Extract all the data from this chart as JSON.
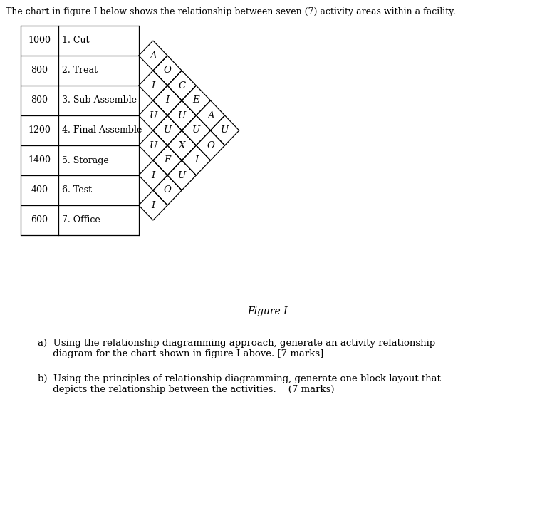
{
  "header_text": "The chart in figure I below shows the relationship between seven (7) activity areas within a facility.",
  "activities": [
    {
      "num": 1,
      "name": "1. Cut",
      "area": 1000
    },
    {
      "num": 2,
      "name": "2. Treat",
      "area": 800
    },
    {
      "num": 3,
      "name": "3. Sub-Assemble",
      "area": 800
    },
    {
      "num": 4,
      "name": "4. Final Assemble",
      "area": 1200
    },
    {
      "num": 5,
      "name": "5. Storage",
      "area": 1400
    },
    {
      "num": 6,
      "name": "6. Test",
      "area": 400
    },
    {
      "num": 7,
      "name": "7. Office",
      "area": 600
    }
  ],
  "relationships": {
    "1-2": "A",
    "1-3": "O",
    "2-3": "I",
    "1-4": "C",
    "2-4": "I",
    "3-4": "U",
    "1-5": "E",
    "2-5": "U",
    "3-5": "U",
    "4-5": "U",
    "1-6": "A",
    "2-6": "U",
    "3-6": "X",
    "4-6": "E",
    "5-6": "I",
    "1-7": "U",
    "2-7": "O",
    "3-7": "I",
    "4-7": "U",
    "5-7": "O",
    "6-7": "I"
  },
  "figure_label": "Figure I",
  "question_a": "a)  Using the relationship diagramming approach, generate an activity relationship\n     diagram for the chart shown in figure I above. [7 marks]",
  "question_b": "b)  Using the principles of relationship diagramming, generate one block layout that\n     depicts the relationship between the activities.    (7 marks)",
  "bg_color": "#ffffff",
  "line_color": "#000000",
  "text_color": "#000000",
  "font_size_header": 9.0,
  "font_size_activity": 9.0,
  "font_size_rel": 9.5,
  "font_size_figure": 10.0,
  "font_size_question": 9.5
}
